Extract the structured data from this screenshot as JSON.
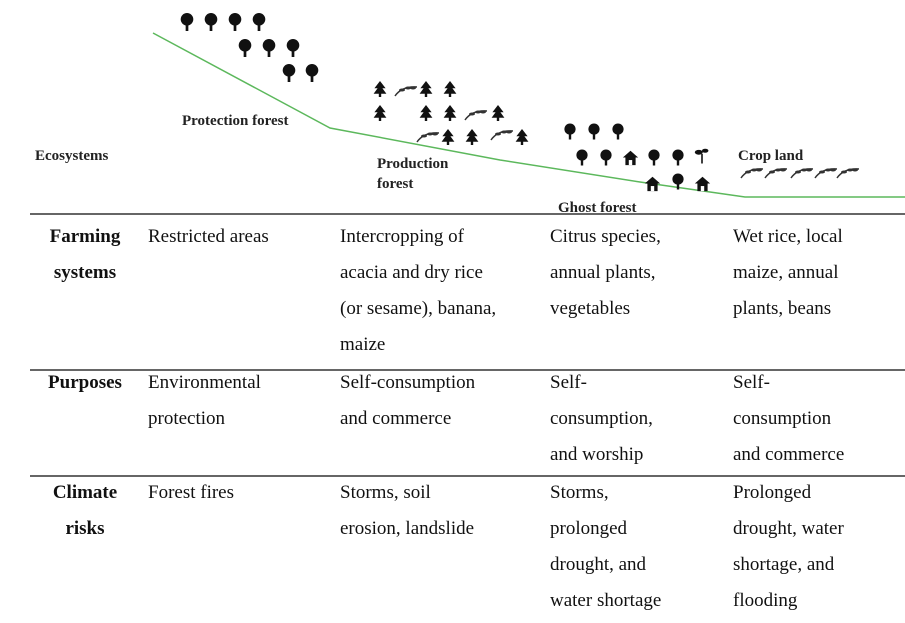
{
  "diagram": {
    "zones": {
      "label": "Ecosystems",
      "protection": [
        "Protection forest"
      ],
      "production": [
        "Production",
        "forest"
      ],
      "ghost": [
        "Ghost forest"
      ],
      "crop": [
        "Crop land"
      ]
    },
    "table": {
      "rows": [
        {
          "header": [
            "Farming",
            "systems"
          ],
          "cells": [
            [
              "Restricted areas"
            ],
            [
              "Intercropping of",
              "acacia and dry rice",
              "(or sesame), banana,",
              "maize"
            ],
            [
              "Citrus species,",
              "annual plants,",
              "vegetables"
            ],
            [
              "Wet rice, local",
              "maize, annual",
              "plants, beans"
            ]
          ]
        },
        {
          "header": [
            "Purposes"
          ],
          "cells": [
            [
              "Environmental",
              "protection"
            ],
            [
              "Self-consumption",
              "and commerce"
            ],
            [
              "Self-",
              "consumption,",
              "and worship"
            ],
            [
              "Self-",
              "consumption",
              "and commerce"
            ]
          ]
        },
        {
          "header": [
            "Climate",
            "risks"
          ],
          "cells": [
            [
              "Forest fires"
            ],
            [
              "Storms, soil",
              "erosion, landslide"
            ],
            [
              "Storms,",
              "prolonged",
              "drought, and",
              "water shortage"
            ],
            [
              "Prolonged",
              "drought, water",
              "shortage, and",
              "flooding"
            ]
          ]
        }
      ]
    }
  }
}
